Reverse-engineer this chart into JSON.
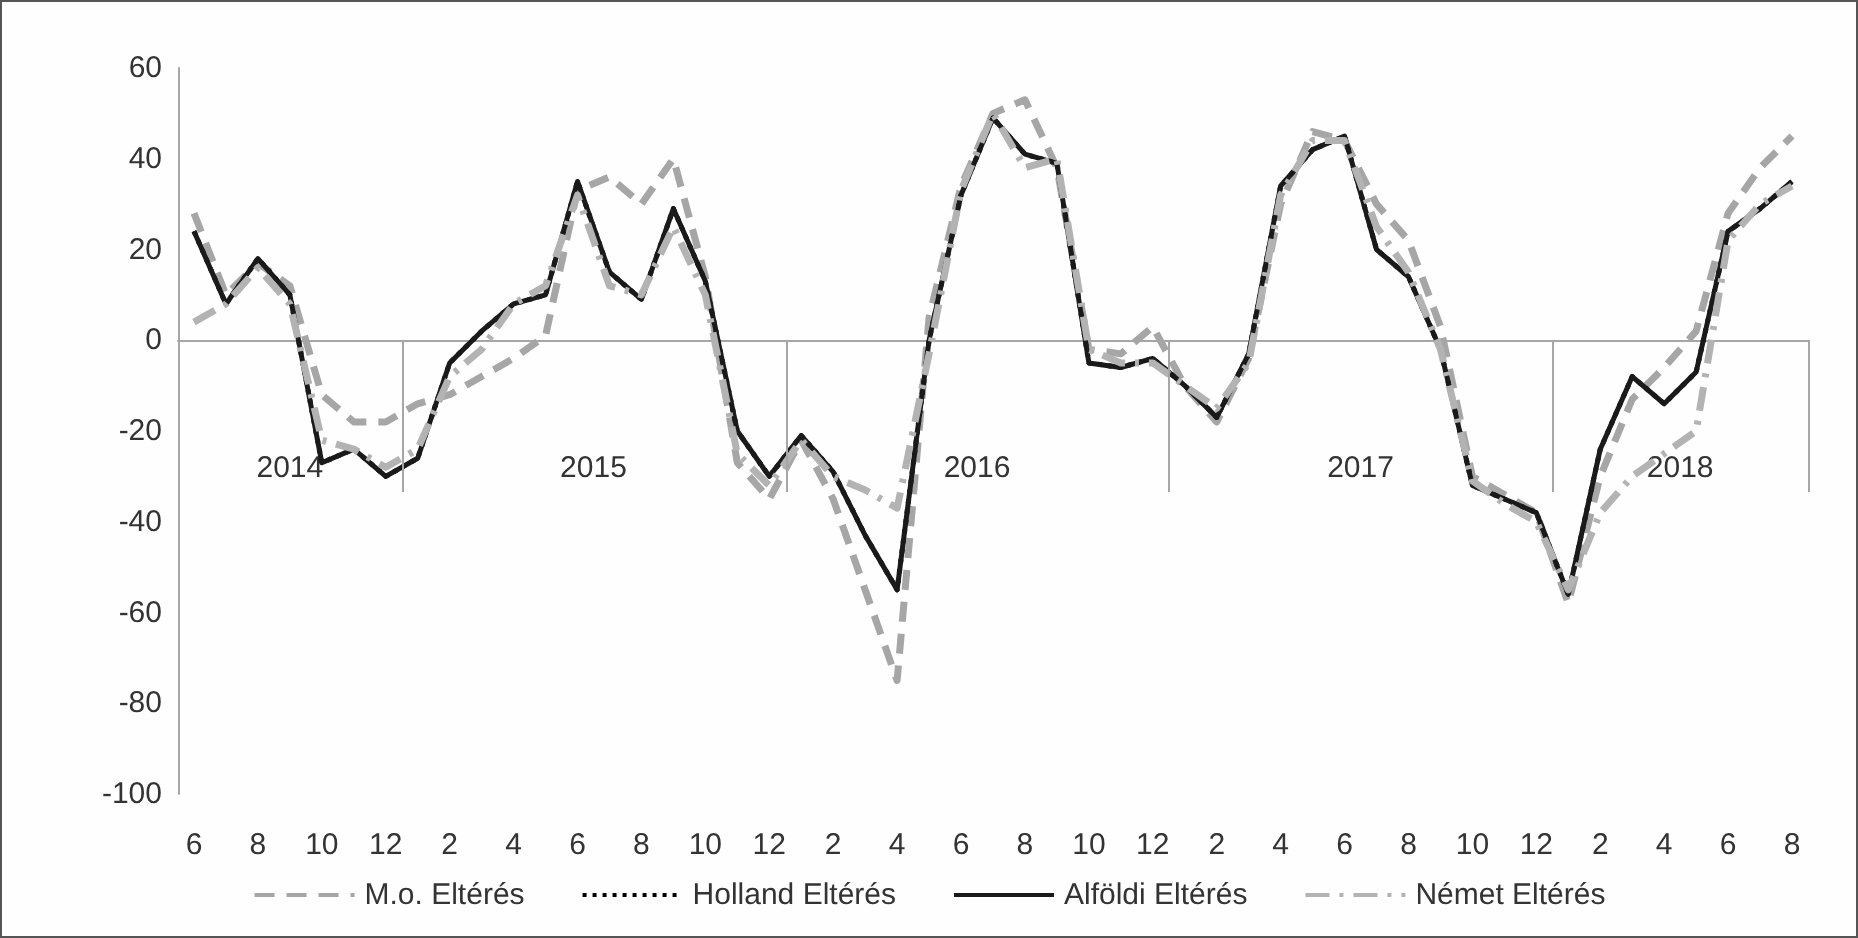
{
  "chart_data": {
    "type": "line",
    "categories": [
      "6",
      null,
      "8",
      null,
      "10",
      null,
      "12",
      null,
      "2",
      null,
      "4",
      null,
      "6",
      null,
      "8",
      null,
      "10",
      null,
      "12",
      null,
      "2",
      null,
      "4",
      null,
      "6",
      null,
      "8",
      null,
      "10",
      null,
      "12",
      null,
      "2",
      null,
      "4",
      null,
      "6",
      null,
      "8",
      null,
      "10",
      null,
      "12",
      null,
      "2",
      null,
      "4",
      null,
      "6",
      null,
      "8"
    ],
    "annotations": [
      "2014",
      "2015",
      "2016",
      "2017",
      "2018"
    ],
    "series": [
      {
        "name": "M.o. Eltérés",
        "color": "#a6a6a6",
        "line_style": "dashed",
        "values": [
          28,
          10,
          17,
          12,
          -12,
          -18,
          -18,
          -14,
          -12,
          -8,
          -4,
          1,
          33,
          36,
          30,
          40,
          14,
          -27,
          -35,
          -22,
          -35,
          -55,
          -75,
          5,
          34,
          50,
          53,
          38,
          -2,
          -3,
          3,
          -10,
          -18,
          -4,
          30,
          46,
          44,
          30,
          22,
          3,
          -30,
          -34,
          -38,
          -58,
          -30,
          -13,
          -6,
          2,
          28,
          38,
          45
        ]
      },
      {
        "name": "Holland Eltérés",
        "color": "#000000",
        "line_style": "dotted",
        "values": [
          24,
          8,
          18,
          10,
          -27,
          -24,
          -30,
          -26,
          -5,
          2,
          8,
          10,
          35,
          15,
          9,
          29,
          13,
          -20,
          -30,
          -21,
          -29,
          -43,
          -55,
          0,
          32,
          49,
          41,
          39,
          -5,
          -6,
          -4,
          -10,
          -17,
          -3,
          34,
          42,
          45,
          20,
          14,
          -2,
          -32,
          -35,
          -38,
          -56,
          -24,
          -8,
          -14,
          -7,
          24,
          29,
          35
        ]
      },
      {
        "name": "Alföldi Eltérés",
        "color": "#1a1a1a",
        "line_style": "solid",
        "values": [
          24,
          8,
          18,
          10,
          -27,
          -24,
          -30,
          -26,
          -5,
          2,
          8,
          10,
          35,
          15,
          9,
          29,
          13,
          -20,
          -30,
          -21,
          -29,
          -43,
          -55,
          0,
          32,
          49,
          41,
          39,
          -5,
          -6,
          -4,
          -10,
          -17,
          -3,
          34,
          42,
          45,
          20,
          14,
          -2,
          -32,
          -35,
          -38,
          -56,
          -24,
          -8,
          -14,
          -7,
          24,
          29,
          35
        ]
      },
      {
        "name": "Német Eltérés",
        "color": "#b3b3b3",
        "line_style": "dashdot",
        "values": [
          4,
          8,
          16,
          8,
          -22,
          -24,
          -28,
          -24,
          -8,
          -2,
          8,
          12,
          32,
          12,
          10,
          25,
          10,
          -25,
          -32,
          -22,
          -30,
          -33,
          -37,
          -3,
          33,
          50,
          38,
          40,
          -2,
          -5,
          -5,
          -10,
          -15,
          -5,
          32,
          44,
          44,
          25,
          15,
          -2,
          -31,
          -36,
          -40,
          -55,
          -38,
          -30,
          -25,
          -20,
          22,
          30,
          34
        ]
      }
    ],
    "ylim": [
      -100,
      60
    ],
    "yticks": [
      -100,
      -80,
      -60,
      -40,
      -20,
      0,
      20,
      40,
      60
    ],
    "legend": "bottom",
    "marker": "none"
  }
}
